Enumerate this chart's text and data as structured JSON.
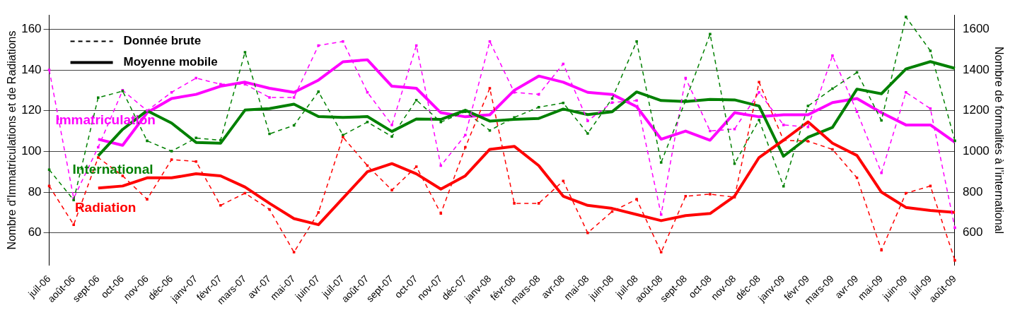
{
  "chart_data": {
    "type": "line",
    "ylabel": "Nombre d'Immatriculations et de Radiations",
    "y2label": "Nombre de formalités à l’international",
    "categories": [
      "juil-06",
      "août-06",
      "sept-06",
      "oct-06",
      "nov-06",
      "déc-06",
      "janv-07",
      "févr-07",
      "mars-07",
      "avr-07",
      "mai-07",
      "juin-07",
      "juil-07",
      "août-07",
      "sept-07",
      "oct-07",
      "nov-07",
      "déc-07",
      "janv-08",
      "févr-08",
      "mars-08",
      "avr-08",
      "mai-08",
      "juin-08",
      "juil-08",
      "août-08",
      "sept-08",
      "oct-08",
      "nov-08",
      "déc-08",
      "janv-09",
      "févr-09",
      "mars-09",
      "avr-09",
      "mai-09",
      "juin-09",
      "juil-09",
      "août-09"
    ],
    "series": [
      {
        "color": "#ff00ff",
        "line_style": "dashed",
        "marker": "square",
        "values": [
          140,
          77,
          102,
          130,
          120,
          129,
          136,
          133,
          133,
          126.5,
          126.5,
          152,
          154,
          129,
          113,
          152,
          93,
          108,
          154,
          129,
          128,
          143,
          115,
          124,
          125,
          69,
          136,
          110,
          111,
          129,
          113,
          112,
          147,
          119.5,
          89.5,
          129,
          121,
          62.5
        ]
      },
      {
        "name": "Immatriculation",
        "color": "#ff00ff",
        "line_style": "solid",
        "marker": "none",
        "values": [
          null,
          null,
          106,
          103,
          119,
          126,
          128,
          132,
          134,
          131,
          129,
          135,
          144,
          145,
          132,
          131,
          119,
          117,
          118,
          130,
          137,
          134,
          129,
          128,
          122,
          106,
          110,
          105.5,
          119,
          117,
          118,
          118,
          124,
          126,
          119,
          113,
          113,
          104.5
        ]
      },
      {
        "color": "#008000",
        "line_style": "dashed",
        "marker": "square",
        "axis": "y2",
        "values": [
          910,
          761,
          1264,
          1296,
          1052,
          1001,
          1066,
          1055,
          1487,
          1086,
          1128,
          1293,
          1080,
          1144,
          1073,
          1252,
          1144,
          1195,
          1103,
          1167,
          1217,
          1238,
          1088,
          1260,
          1540,
          946,
          1250,
          1576,
          940,
          1154,
          829,
          1223,
          1308,
          1388,
          1152,
          1660,
          1494,
          1052
        ]
      },
      {
        "name": "International",
        "color": "#008000",
        "line_style": "solid",
        "marker": "none",
        "axis": "y2",
        "values": [
          null,
          null,
          978,
          1108,
          1200,
          1139,
          1044,
          1040,
          1203,
          1210,
          1232,
          1171,
          1167,
          1171,
          1098,
          1159,
          1157,
          1202,
          1149,
          1157,
          1162,
          1208,
          1181,
          1195,
          1292,
          1250,
          1245,
          1255,
          1253,
          1223,
          976,
          1069,
          1118,
          1306,
          1283,
          1405,
          1441,
          1408
        ]
      },
      {
        "color": "#ff0000",
        "line_style": "dashed",
        "marker": "square",
        "values": [
          83,
          64,
          97,
          88,
          76.5,
          96,
          95,
          73.5,
          79.5,
          71.5,
          50.5,
          70,
          107,
          93,
          81,
          92.5,
          69.5,
          102,
          131,
          74.5,
          74.5,
          85.5,
          60,
          70.5,
          76.5,
          50.5,
          78,
          79,
          77.5,
          134,
          105.5,
          105,
          101,
          87,
          51.5,
          79.5,
          83,
          46.5
        ]
      },
      {
        "name": "Radiation",
        "color": "#ff0000",
        "line_style": "solid",
        "marker": "none",
        "values": [
          null,
          null,
          82,
          83,
          87,
          87,
          89,
          88,
          82.5,
          74.5,
          67,
          64,
          77,
          90,
          94,
          89,
          81.5,
          88,
          101,
          102.5,
          93,
          78,
          73.5,
          72,
          69,
          66,
          68.5,
          69.5,
          78,
          97,
          105.5,
          114.5,
          104,
          98,
          80,
          72.5,
          71,
          70
        ]
      }
    ],
    "ylim": [
      44,
      167
    ],
    "yticks": [
      60,
      80,
      100,
      120,
      140,
      160
    ],
    "y2lim": [
      440,
      1670
    ],
    "y2ticks": [
      600,
      800,
      1000,
      1200,
      1400,
      1600
    ],
    "grid": "y",
    "legend": "left",
    "annotations": [
      "Donnée brute",
      "Moyenne mobile"
    ]
  }
}
